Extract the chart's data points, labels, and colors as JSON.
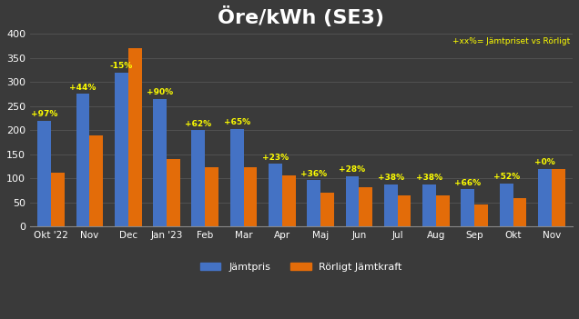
{
  "title": "Öre/kWh (SE3)",
  "categories": [
    "Okt '22",
    "Nov",
    "Dec",
    "Jan '23",
    "Feb",
    "Mar",
    "Apr",
    "Maj",
    "Jun",
    "Jul",
    "Aug",
    "Sep",
    "Okt",
    "Nov"
  ],
  "jamtpris": [
    220,
    275,
    320,
    265,
    200,
    203,
    130,
    96,
    105,
    88,
    88,
    77,
    90,
    120
  ],
  "rorligt": [
    112,
    190,
    370,
    140,
    124,
    123,
    106,
    70,
    82,
    64,
    64,
    46,
    59,
    120
  ],
  "percentages": [
    "+97%",
    "+44%",
    "-15%",
    "+90%",
    "+62%",
    "+65%",
    "+23%",
    "+36%",
    "+28%",
    "+38%",
    "+38%",
    "+66%",
    "+52%",
    "+0%"
  ],
  "color_jamtpris": "#4472C4",
  "color_rorligt": "#E36C09",
  "color_pct": "#FFFF00",
  "background_color": "#3A3A3A",
  "axes_background": "#3A3A3A",
  "text_color": "#FFFFFF",
  "grid_color": "#555555",
  "title_fontsize": 16,
  "ylabel_max": 400,
  "legend_label_jamtpris": "Jämtpris",
  "legend_label_rorligt": "Rörligt Jämtkraft",
  "annotation": "+xx%= Jämtpriset vs Rörligt"
}
